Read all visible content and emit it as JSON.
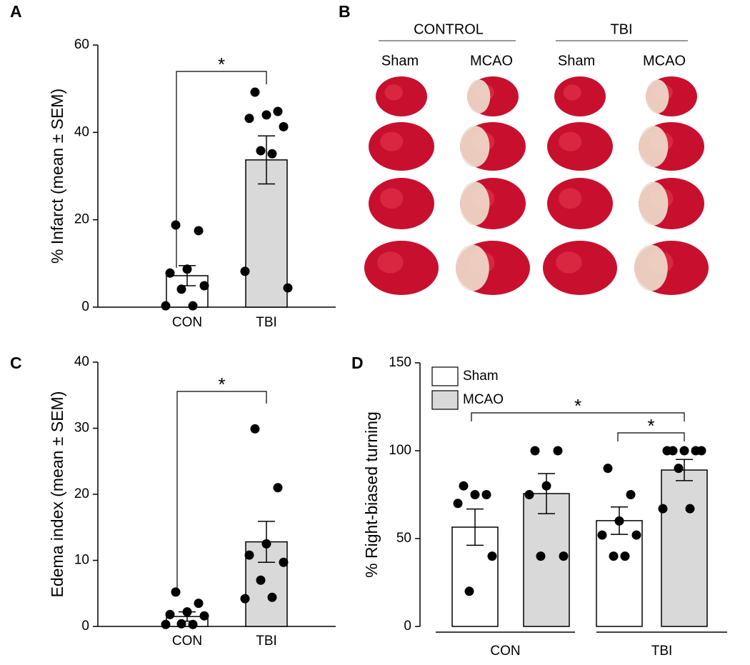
{
  "chart_data": [
    {
      "type": "bar",
      "panel_label": "A",
      "ylabel": "%  Infarct (mean ± SEM)",
      "categories": [
        "CON",
        "TBI"
      ],
      "values": [
        7.2,
        33.7
      ],
      "errors": [
        2.3,
        5.5
      ],
      "colors": [
        "#ffffff",
        "#d9d9d9"
      ],
      "points": [
        [
          18.8,
          17.5,
          8.7,
          7.8,
          4.9,
          4.1,
          0.3,
          0.3
        ],
        [
          49.2,
          44.8,
          44,
          43.2,
          41.3,
          35.8,
          35.1,
          8.2,
          4.4
        ]
      ],
      "ylim": [
        0,
        60
      ],
      "yticks": [
        0,
        20,
        40,
        60
      ],
      "annotations": [
        "*"
      ]
    },
    {
      "type": "bar",
      "panel_label": "C",
      "ylabel": "Edema index (mean ± SEM)",
      "categories": [
        "CON",
        "TBI"
      ],
      "values": [
        1.5,
        12.8
      ],
      "errors": [
        0.7,
        3.1
      ],
      "colors": [
        "#ffffff",
        "#d9d9d9"
      ],
      "points": [
        [
          5.2,
          3.5,
          2.2,
          1.8,
          1.6,
          0.4,
          0.3,
          0.3
        ],
        [
          29.9,
          21.0,
          12.5,
          10.8,
          9.7,
          7.0,
          4.4,
          4.2
        ]
      ],
      "ylim": [
        0,
        40
      ],
      "yticks": [
        0,
        10,
        20,
        30,
        40
      ],
      "annotations": [
        "*"
      ]
    },
    {
      "type": "bar",
      "panel_label": "D",
      "ylabel": "% Right-biased turning",
      "categories": [
        "CON",
        "TBI"
      ],
      "series": [
        {
          "name": "Sham",
          "color": "#ffffff",
          "values": [
            56.5,
            60.2
          ],
          "errors": [
            10.3,
            7.8
          ],
          "points": [
            [
              80,
              75,
              75,
              70,
              40,
              20
            ],
            [
              90,
              75,
              60,
              52,
              52,
              40,
              40
            ]
          ]
        },
        {
          "name": "MCAO",
          "color": "#d9d9d9",
          "values": [
            75.6,
            89
          ],
          "errors": [
            11.4,
            6
          ],
          "points": [
            [
              100,
              100,
              80,
              75,
              40,
              40
            ],
            [
              100,
              100,
              100,
              100,
              100,
              90,
              67,
              67
            ]
          ]
        }
      ],
      "ylim": [
        0,
        150
      ],
      "yticks": [
        0,
        50,
        100,
        150
      ],
      "annotations": [
        "*",
        "*"
      ]
    }
  ],
  "panel_b": {
    "panel_label": "B",
    "groups": [
      "CONTROL",
      "TBI"
    ],
    "columns": [
      "Sham",
      "MCAO",
      "Sham",
      "MCAO"
    ]
  }
}
